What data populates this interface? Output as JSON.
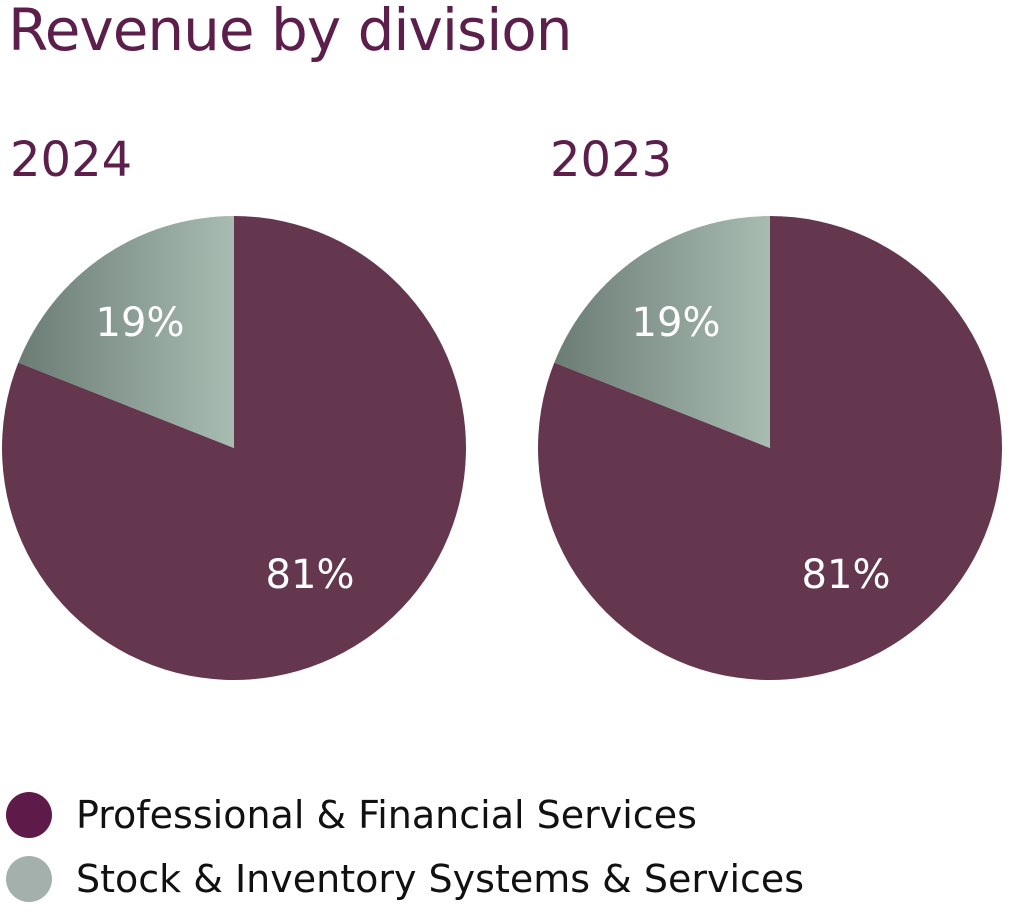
{
  "chart_data": {
    "type": "pie",
    "title": "Revenue by division",
    "legend_position": "bottom-left",
    "series_names": [
      "Professional & Financial Services",
      "Stock & Inventory Systems & Services"
    ],
    "colors": [
      "#65374f",
      "#a3b0ac"
    ],
    "pies": [
      {
        "label": "2024",
        "values": [
          81,
          19
        ],
        "data_labels": [
          "81%",
          "19%"
        ]
      },
      {
        "label": "2023",
        "values": [
          81,
          19
        ],
        "data_labels": [
          "81%",
          "19%"
        ]
      }
    ]
  },
  "legend": [
    {
      "label": "Professional & Financial Services",
      "color": "#5e1a48"
    },
    {
      "label": "Stock & Inventory Systems & Services",
      "color": "#a3b0ac"
    }
  ]
}
